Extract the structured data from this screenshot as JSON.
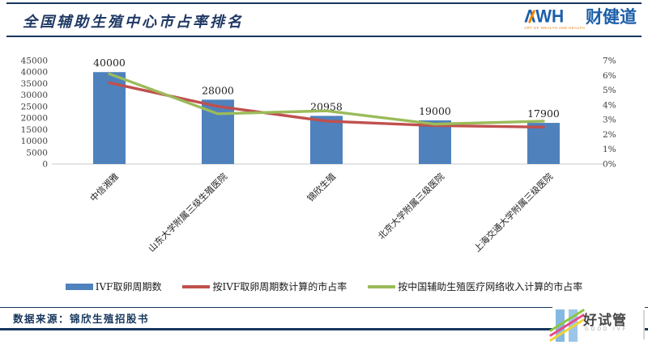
{
  "header": {
    "title": "全国辅助生殖中心市占率排名",
    "logo": {
      "awh": "ΛWH",
      "tagline": "ART OF WEALTH AND HEALTH",
      "brand_cn": "财健道",
      "brand_color": "#1B5EA8",
      "accent_color": "#F08300"
    }
  },
  "chart_data": {
    "type": "bar",
    "subtype": "bar-line-combo-dual-axis",
    "categories": [
      "中信湘雅",
      "山东大学附属三级生殖医院",
      "锦欣生殖",
      "北京大学附属三级医院",
      "上海交通大学附属三级医院"
    ],
    "series": [
      {
        "name": "IVF取卵周期数",
        "type": "bar",
        "axis": "left",
        "color": "#4F81BD",
        "values": [
          40000,
          28000,
          20958,
          19000,
          17900
        ]
      },
      {
        "name": "按IVF取卵周期数计算的市占率",
        "type": "line",
        "axis": "right",
        "color": "#C0504D",
        "values": [
          5.5,
          3.9,
          2.9,
          2.6,
          2.5
        ],
        "unit": "%"
      },
      {
        "name": "按中国辅助生殖医疗网络收入计算的市占率",
        "type": "line",
        "axis": "right",
        "color": "#9BBB59",
        "values": [
          6.1,
          3.4,
          3.6,
          2.7,
          2.9
        ],
        "unit": "%"
      }
    ],
    "bar_labels": [
      "40000",
      "28000",
      "20958",
      "19000",
      "17900"
    ],
    "left_axis": {
      "min": 0,
      "max": 45000,
      "step": 5000,
      "ticks": [
        "0",
        "5000",
        "10000",
        "15000",
        "20000",
        "25000",
        "30000",
        "35000",
        "40000",
        "45000"
      ]
    },
    "right_axis": {
      "min": 0,
      "max": 7,
      "step": 1,
      "suffix": "%",
      "ticks": [
        "0%",
        "1%",
        "2%",
        "3%",
        "4%",
        "5%",
        "6%",
        "7%"
      ]
    },
    "grid": false,
    "legend_position": "bottom",
    "x_label_rotation": -45
  },
  "footer": {
    "source": "数据来源：锦欣生殖招股书",
    "logo": {
      "text": "好试管",
      "subtext": "GOOD IVF"
    }
  }
}
